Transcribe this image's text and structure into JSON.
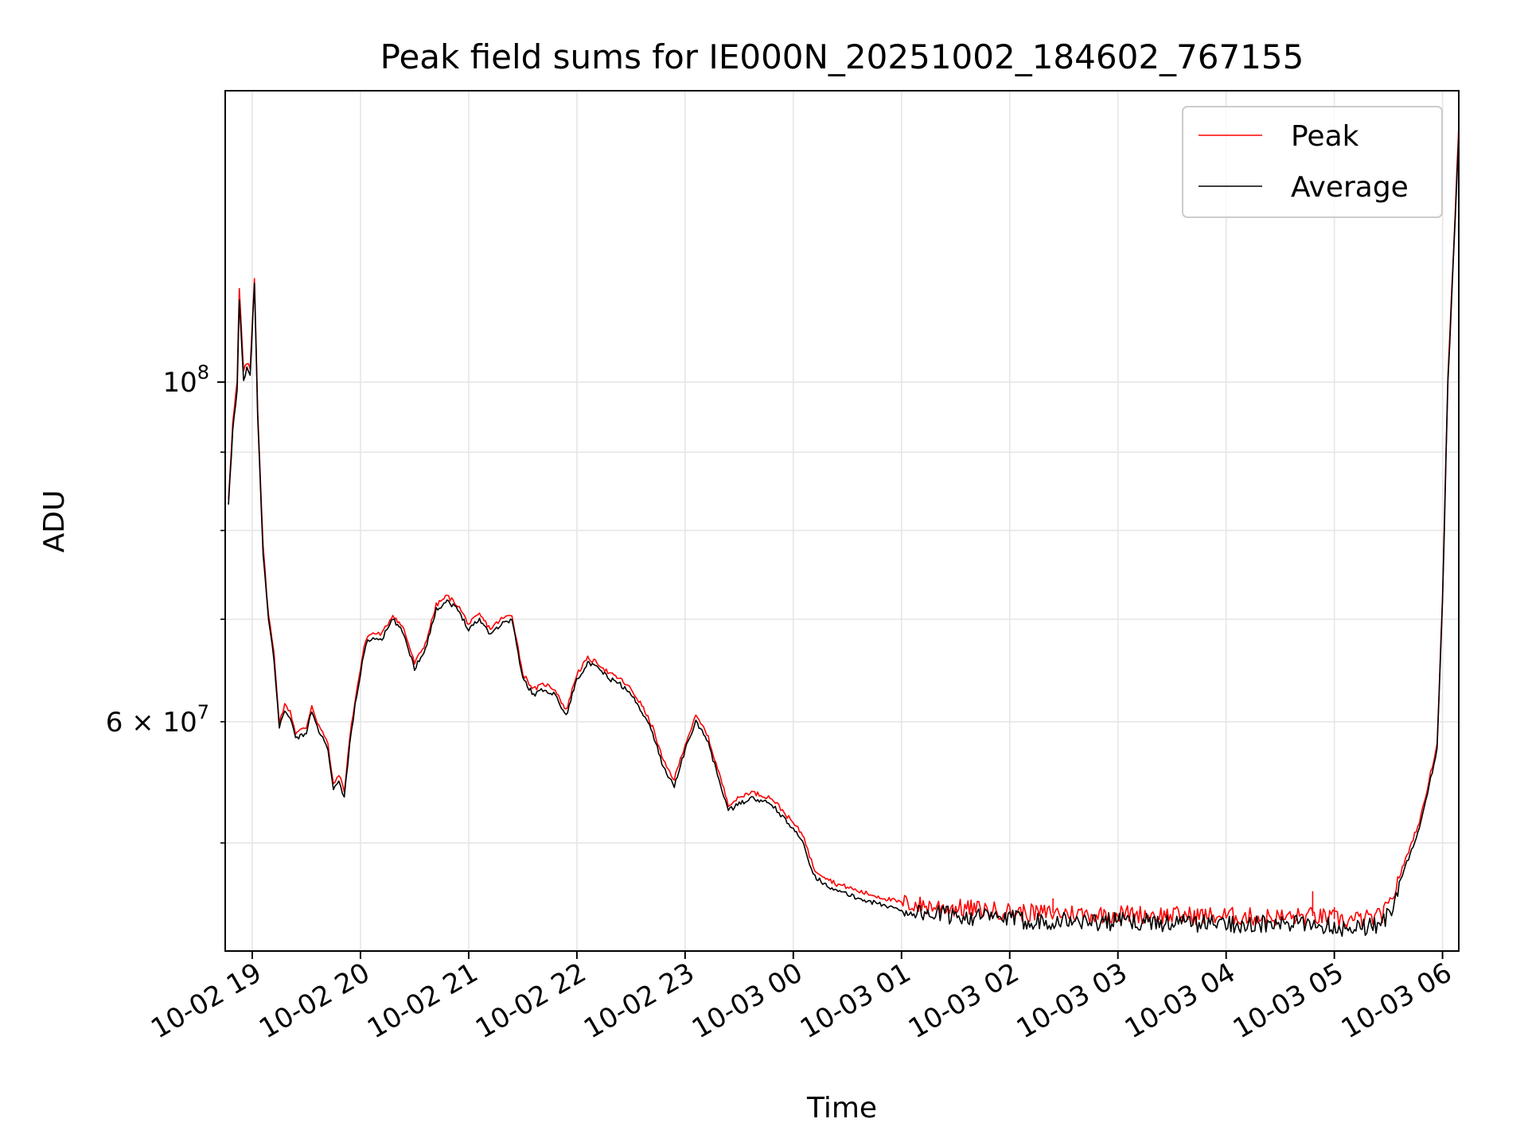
{
  "chart_data": {
    "type": "line",
    "title": "Peak field sums for IE000N_20251002_184602_767155",
    "xlabel": "Time",
    "ylabel": "ADU",
    "yscale": "log",
    "ylim": [
      42500000,
      155000000
    ],
    "xlim_hours": [
      -0.25,
      11.15
    ],
    "x_ticks": [
      {
        "h": 0,
        "label": "10-02 19"
      },
      {
        "h": 1,
        "label": "10-02 20"
      },
      {
        "h": 2,
        "label": "10-02 21"
      },
      {
        "h": 3,
        "label": "10-02 22"
      },
      {
        "h": 4,
        "label": "10-02 23"
      },
      {
        "h": 5,
        "label": "10-03 00"
      },
      {
        "h": 6,
        "label": "10-03 01"
      },
      {
        "h": 7,
        "label": "10-03 02"
      },
      {
        "h": 8,
        "label": "10-03 03"
      },
      {
        "h": 9,
        "label": "10-03 04"
      },
      {
        "h": 10,
        "label": "10-03 05"
      },
      {
        "h": 11,
        "label": "10-03 06"
      }
    ],
    "y_major_ticks": [
      {
        "value": 100000000,
        "base": "10",
        "exp": "8"
      }
    ],
    "y_minor_ticks": [
      {
        "value": 50000000,
        "label": ""
      },
      {
        "value": 60000000,
        "label": "6 × 10",
        "exp": "7"
      },
      {
        "value": 70000000,
        "label": ""
      },
      {
        "value": 80000000,
        "label": ""
      },
      {
        "value": 90000000,
        "label": ""
      }
    ],
    "grid": true,
    "legend_position": "top-right",
    "series": [
      {
        "name": "Peak",
        "color": "#ff0000"
      },
      {
        "name": "Average",
        "color": "#000000"
      }
    ],
    "x_hours": [
      -0.22,
      -0.18,
      -0.14,
      -0.12,
      -0.08,
      -0.05,
      -0.02,
      0.02,
      0.05,
      0.1,
      0.15,
      0.2,
      0.25,
      0.3,
      0.35,
      0.4,
      0.5,
      0.55,
      0.6,
      0.65,
      0.7,
      0.75,
      0.8,
      0.85,
      0.9,
      0.95,
      1.0,
      1.05,
      1.1,
      1.15,
      1.2,
      1.3,
      1.4,
      1.5,
      1.6,
      1.7,
      1.8,
      1.9,
      2.0,
      2.1,
      2.2,
      2.3,
      2.4,
      2.5,
      2.6,
      2.7,
      2.8,
      2.9,
      3.0,
      3.1,
      3.2,
      3.3,
      3.4,
      3.5,
      3.6,
      3.7,
      3.8,
      3.9,
      4.0,
      4.1,
      4.2,
      4.4,
      4.6,
      4.8,
      4.85,
      4.9,
      5.0,
      5.1,
      5.15,
      5.2,
      5.3,
      5.4,
      5.5,
      5.6,
      5.7,
      5.8,
      5.9,
      6.0,
      6.2,
      6.4,
      6.6,
      6.8,
      7.0,
      7.2,
      7.5,
      7.8,
      8.0,
      8.5,
      9.0,
      9.5,
      9.8,
      10.0,
      10.1,
      10.2,
      10.4,
      10.5,
      10.6,
      10.8,
      10.95,
      11.0,
      11.05,
      11.1,
      11.15
    ],
    "average_values": [
      83000000,
      93000000,
      99000000,
      113000000,
      100000000,
      102000000,
      101000000,
      116000000,
      95000000,
      77000000,
      70000000,
      66000000,
      59500000,
      61000000,
      60500000,
      58500000,
      59000000,
      61000000,
      59500000,
      58500000,
      57500000,
      54000000,
      55000000,
      53500000,
      58000000,
      61500000,
      64500000,
      67500000,
      68000000,
      68000000,
      68000000,
      70000000,
      68500000,
      65000000,
      67000000,
      71000000,
      72000000,
      71000000,
      69000000,
      70000000,
      68500000,
      69500000,
      70000000,
      64000000,
      62500000,
      63000000,
      62500000,
      60500000,
      64000000,
      65500000,
      65000000,
      64000000,
      63500000,
      62500000,
      61000000,
      59000000,
      56000000,
      54500000,
      57500000,
      60000000,
      58500000,
      52500000,
      53500000,
      53000000,
      52500000,
      52000000,
      51000000,
      50000000,
      48500000,
      47500000,
      47000000,
      46500000,
      46300000,
      46000000,
      45800000,
      45600000,
      45400000,
      45200000,
      45000000,
      44900000,
      44800000,
      44700000,
      44600000,
      44500000,
      44500000,
      44400000,
      44450000,
      44350000,
      44300000,
      44200000,
      44300000,
      44100000,
      44000000,
      44050000,
      44200000,
      44800000,
      47000000,
      51500000,
      57500000,
      72000000,
      100000000,
      120000000,
      145000000
    ],
    "peak_values": [
      84000000,
      94000000,
      100000000,
      115000000,
      101500000,
      103000000,
      102000000,
      117000000,
      96000000,
      78000000,
      70500000,
      66500000,
      60000000,
      61500000,
      61000000,
      59000000,
      59500000,
      61500000,
      60000000,
      59000000,
      58000000,
      54500000,
      55500000,
      54000000,
      58500000,
      62000000,
      65000000,
      68000000,
      68500000,
      68500000,
      68500000,
      70500000,
      69000000,
      65500000,
      67500000,
      71500000,
      72500000,
      71500000,
      69500000,
      70500000,
      69000000,
      70000000,
      70500000,
      64500000,
      63000000,
      63500000,
      63000000,
      61000000,
      64500000,
      66000000,
      65500000,
      64500000,
      64000000,
      63000000,
      61500000,
      59500000,
      56500000,
      55000000,
      58000000,
      60500000,
      59000000,
      53000000,
      54000000,
      53500000,
      53000000,
      52500000,
      51500000,
      50500000,
      49000000,
      48000000,
      47500000,
      47000000,
      46800000,
      46500000,
      46300000,
      46100000,
      45900000,
      45700000,
      45500000,
      45400000,
      45300000,
      45200000,
      45100000,
      45000000,
      45000000,
      44900000,
      44950000,
      44850000,
      44800000,
      44700000,
      44800000,
      44600000,
      44500000,
      44550000,
      44700000,
      45300000,
      47500000,
      52000000,
      58000000,
      72500000,
      101000000,
      121000000,
      147000000
    ],
    "spikes": [
      {
        "h": 7.4,
        "peak": 46000000
      },
      {
        "h": 9.8,
        "peak": 46500000
      },
      {
        "h": 10.0,
        "peak": 45400000
      }
    ]
  }
}
